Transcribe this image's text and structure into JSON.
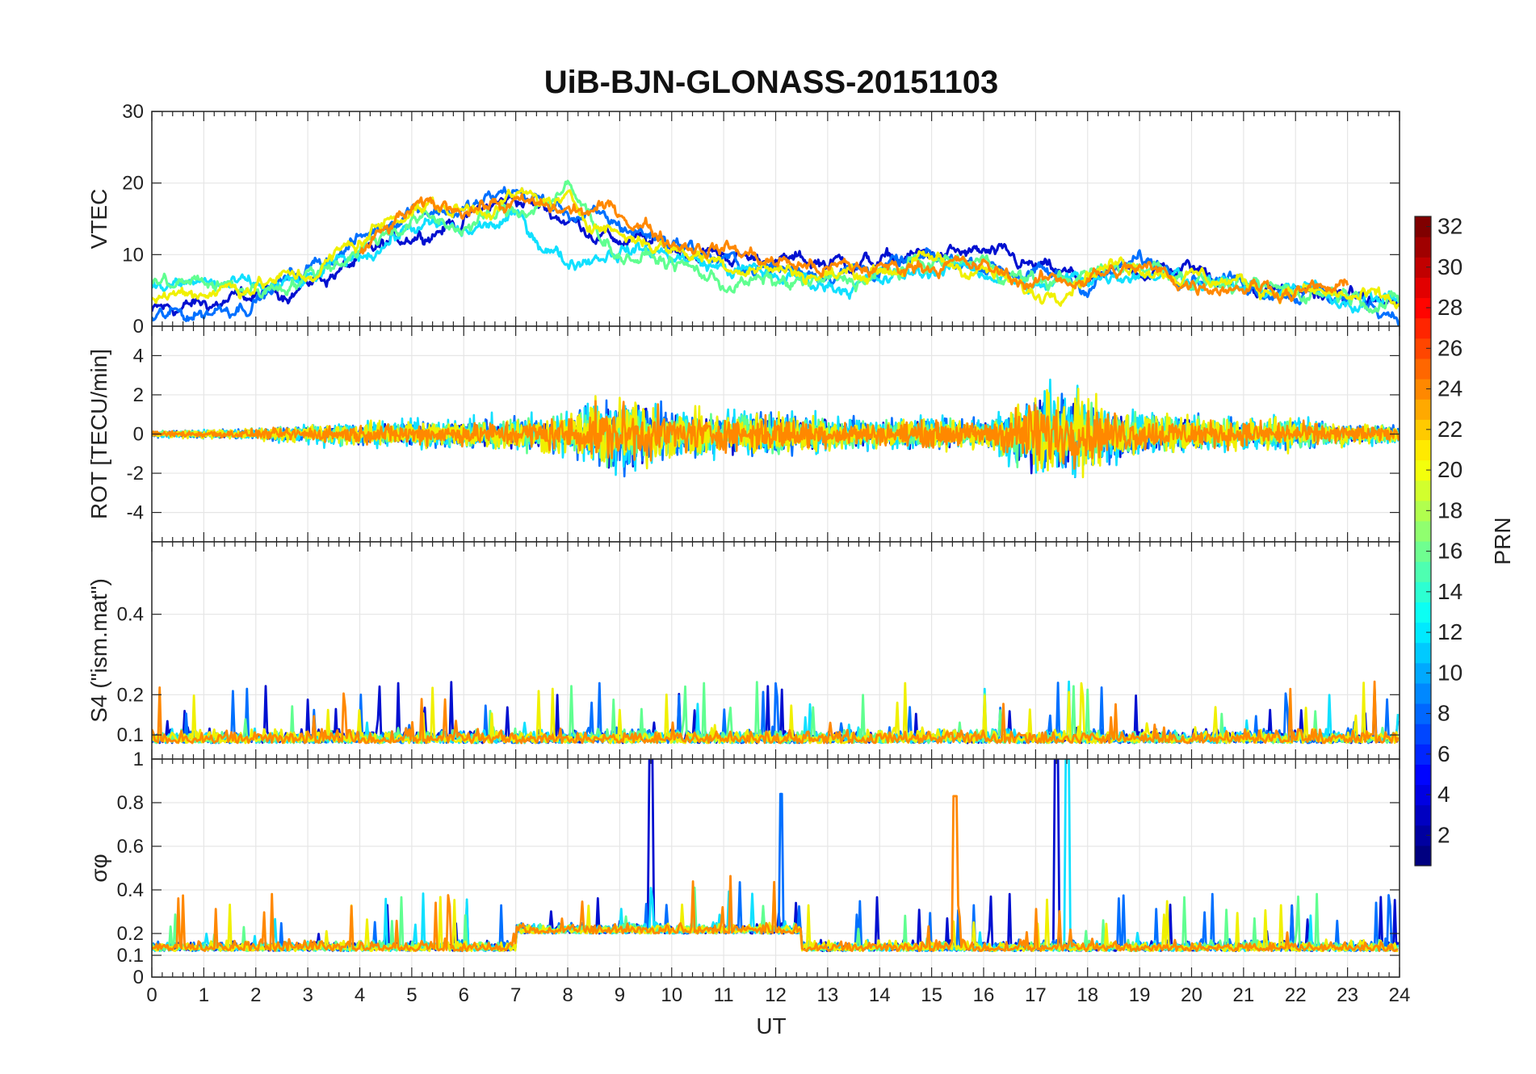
{
  "title": "UiB-BJN-GLONASS-20151103",
  "chart_data": {
    "type": "line",
    "x": {
      "label": "UT",
      "range": [
        0,
        24
      ],
      "ticks": [
        0,
        1,
        2,
        3,
        4,
        5,
        6,
        7,
        8,
        9,
        10,
        11,
        12,
        13,
        14,
        15,
        16,
        17,
        18,
        19,
        20,
        21,
        22,
        23,
        24
      ]
    },
    "panels": [
      {
        "name": "vtec",
        "ylabel": "VTEC",
        "ylim": [
          0,
          30
        ],
        "yticks": [
          0,
          10,
          20,
          30
        ],
        "series": [
          {
            "prn": 3,
            "x": [
              0,
              1,
              2,
              3,
              4,
              5,
              6,
              7,
              8,
              9,
              10,
              11,
              12,
              13,
              14,
              15,
              16,
              17,
              18,
              19,
              20,
              21,
              22,
              23,
              24
            ],
            "values": [
              2,
              3,
              4,
              6,
              9,
              13,
              15,
              18,
              15,
              12,
              11,
              10,
              9,
              9,
              9,
              10,
              10,
              8,
              6,
              8,
              8,
              6,
              5,
              4,
              3
            ]
          },
          {
            "prn": 8,
            "x": [
              0,
              1,
              2,
              3,
              4,
              5,
              6,
              7,
              8,
              9,
              10,
              11,
              12,
              13,
              14,
              15,
              16,
              17,
              18,
              19,
              20,
              21,
              22,
              23,
              24
            ],
            "values": [
              1,
              2,
              4,
              8,
              12,
              17,
              16,
              19,
              16,
              14,
              12,
              9,
              8,
              8,
              8,
              9,
              9,
              7,
              6,
              9,
              8,
              6,
              5,
              4,
              2
            ]
          },
          {
            "prn": 12,
            "x": [
              0,
              1,
              2,
              3,
              4,
              5,
              6,
              7,
              8,
              9,
              10,
              11,
              12,
              13,
              14,
              15,
              16,
              17,
              18,
              19,
              20,
              21,
              22,
              23,
              24
            ],
            "values": [
              5,
              6,
              5,
              6,
              10,
              14,
              13,
              15,
              9,
              11,
              10,
              8,
              7,
              6,
              6,
              8,
              8,
              5,
              7,
              8,
              7,
              5,
              5,
              4,
              4
            ]
          },
          {
            "prn": 17,
            "x": [
              0,
              1,
              2,
              3,
              4,
              5,
              6,
              7,
              8,
              9,
              10,
              11,
              12,
              13,
              14,
              15,
              16,
              17,
              18,
              19,
              20,
              21,
              22,
              23,
              24
            ],
            "values": [
              6,
              6,
              5,
              7,
              11,
              15,
              14,
              16,
              19,
              10,
              9,
              6,
              6,
              6,
              7,
              9,
              9,
              6,
              7,
              9,
              7,
              5,
              5,
              5,
              3
            ]
          },
          {
            "prn": 20,
            "x": [
              0,
              1,
              2,
              3,
              4,
              5,
              6,
              7,
              8,
              9,
              10,
              11,
              12,
              13,
              14,
              15,
              16,
              17,
              18,
              19,
              20,
              21,
              22,
              23,
              24
            ],
            "values": [
              4,
              5,
              6,
              7,
              12,
              17,
              16,
              18,
              17,
              13,
              11,
              9,
              8,
              7,
              8,
              9,
              8,
              4,
              8,
              9,
              7,
              6,
              5,
              4,
              3
            ]
          },
          {
            "prn": 24,
            "x": [
              4,
              5,
              6,
              7,
              8,
              9,
              10,
              11,
              12,
              13,
              14,
              15,
              16,
              17,
              18,
              19,
              20,
              21,
              22,
              23
            ],
            "values": [
              10,
              16,
              17,
              17,
              16,
              16,
              12,
              11,
              9,
              8,
              8,
              9,
              8,
              6,
              7,
              8,
              6,
              6,
              5,
              5
            ]
          }
        ]
      },
      {
        "name": "rot",
        "ylabel": "ROT [TECU/min]",
        "ylim": [
          -5.5,
          5.5
        ],
        "yticks": [
          -4,
          -2,
          0,
          2,
          4
        ],
        "activity_hours": [
          0,
          1,
          2,
          3,
          4,
          5,
          6,
          7,
          8,
          9,
          10,
          11,
          12,
          13,
          14,
          15,
          16,
          17,
          18,
          19,
          20,
          21,
          22,
          23,
          24
        ],
        "amplitude": [
          0.3,
          0.4,
          0.5,
          0.8,
          1.0,
          1.2,
          1.2,
          1.5,
          2.0,
          3.5,
          2.2,
          1.8,
          2.0,
          1.4,
          1.2,
          1.5,
          1.2,
          4.0,
          3.0,
          1.8,
          1.6,
          1.4,
          1.3,
          1.0,
          0.7
        ],
        "series_prn": [
          3,
          8,
          12,
          17,
          20,
          24
        ]
      },
      {
        "name": "s4",
        "ylabel": "S4 (\"ism.mat\")",
        "ylim": [
          0.04,
          0.58
        ],
        "yticks": [
          0.1,
          0.2,
          0.4
        ],
        "baseline": 0.08,
        "spike_level": 0.22,
        "series_prn": [
          3,
          8,
          12,
          17,
          20,
          24
        ]
      },
      {
        "name": "sigma_phi",
        "ylabel": "σφ",
        "ylim": [
          0,
          1
        ],
        "yticks": [
          0,
          0.1,
          0.2,
          0.4,
          0.6,
          0.8,
          1
        ],
        "baseline": 0.12,
        "peaks": [
          {
            "ut": 9.6,
            "value": 1.0
          },
          {
            "ut": 12.1,
            "value": 0.84
          },
          {
            "ut": 15.45,
            "value": 0.83
          },
          {
            "ut": 17.4,
            "value": 1.0
          },
          {
            "ut": 17.6,
            "value": 1.0
          }
        ],
        "series_prn": [
          3,
          8,
          12,
          17,
          20,
          24
        ]
      }
    ],
    "colorbar": {
      "label": "PRN",
      "range": [
        1,
        32
      ],
      "ticks": [
        2,
        4,
        6,
        8,
        10,
        12,
        14,
        16,
        18,
        20,
        22,
        24,
        26,
        28,
        30,
        32
      ],
      "colormap": "jet"
    }
  },
  "colors": {
    "prn3": "#0010d0",
    "prn8": "#0070ff",
    "prn12": "#10e0ff",
    "prn17": "#60ff90",
    "prn20": "#f0f000",
    "prn24": "#ff8800",
    "grid": "#e6e6e6",
    "axis": "#262626"
  }
}
